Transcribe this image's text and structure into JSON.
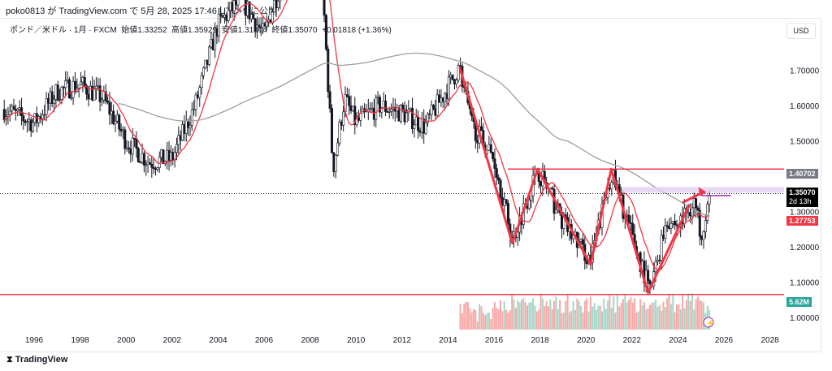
{
  "publish_line": "poko0813 が TradingView.com で 5月 28, 2025 17:46 UTC+9 に公開",
  "legend": {
    "symbol": "ポンド／米ドル · 1月 · FXCM",
    "open": "始値1.33252",
    "high": "高値1.35929",
    "low": "安値1.31314",
    "close": "終値1.35070",
    "change": "+0.01818 (+1.36%)"
  },
  "currency_button": "USD",
  "footer_logo": "TradingView",
  "price_tags": {
    "resistance": "1.40702",
    "last": "1.35070",
    "countdown": "2d 13h",
    "ma": "1.27753",
    "volume": "5.62M"
  },
  "colors": {
    "up": "#131722",
    "ma_red": "#f23645",
    "ma_gray": "#9e9e9e",
    "band": "#e1d0f0",
    "volume_tag": "#26a69a"
  },
  "chart_data": {
    "type": "candlestick",
    "y_ticks": [
      "1.70000",
      "1.60000",
      "1.50000",
      "1.30000",
      "1.20000",
      "1.10000",
      "1.00000"
    ],
    "x_ticks": [
      "1996",
      "1998",
      "2000",
      "2002",
      "2004",
      "2006",
      "2008",
      "2010",
      "2012",
      "2014",
      "2016",
      "2018",
      "2020",
      "2022",
      "2024",
      "2026",
      "2028"
    ],
    "price_path": [
      [
        1995,
        1.58
      ],
      [
        1996,
        1.55
      ],
      [
        1997,
        1.64
      ],
      [
        1998,
        1.66
      ],
      [
        1999,
        1.62
      ],
      [
        2000,
        1.5
      ],
      [
        2001,
        1.44
      ],
      [
        2002,
        1.45
      ],
      [
        2003,
        1.6
      ],
      [
        2004,
        1.83
      ],
      [
        2005,
        1.9
      ],
      [
        2006,
        1.8
      ],
      [
        2007,
        2.0
      ],
      [
        2008.5,
        1.98
      ],
      [
        2009,
        1.42
      ],
      [
        2009.5,
        1.62
      ],
      [
        2010,
        1.55
      ],
      [
        2011,
        1.6
      ],
      [
        2012,
        1.58
      ],
      [
        2013,
        1.54
      ],
      [
        2014.5,
        1.71
      ],
      [
        2015,
        1.55
      ],
      [
        2016,
        1.45
      ],
      [
        2016.8,
        1.22
      ],
      [
        2017.9,
        1.42
      ],
      [
        2019,
        1.27
      ],
      [
        2020.2,
        1.16
      ],
      [
        2021.1,
        1.41
      ],
      [
        2022.8,
        1.07
      ],
      [
        2023.5,
        1.28
      ],
      [
        2024,
        1.26
      ],
      [
        2024.7,
        1.33
      ],
      [
        2025.0,
        1.24
      ],
      [
        2025.4,
        1.35
      ]
    ],
    "horizontal_lines": [
      1.42,
      1.065
    ],
    "band_level": 1.36,
    "zigzag": [
      [
        2014.5,
        1.71
      ],
      [
        2016.8,
        1.21
      ],
      [
        2017.9,
        1.42
      ],
      [
        2020.2,
        1.15
      ],
      [
        2021.1,
        1.42
      ],
      [
        2022.7,
        1.07
      ],
      [
        2024.5,
        1.32
      ]
    ],
    "arrow": [
      [
        2024.2,
        1.325
      ],
      [
        2025.1,
        1.355
      ]
    ]
  }
}
